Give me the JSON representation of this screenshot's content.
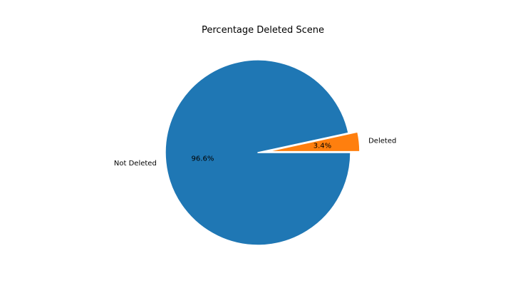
{
  "chart_data": {
    "type": "pie",
    "title": "Percentage Deleted Scene",
    "slices": [
      {
        "label": "Deleted",
        "value": 3.4,
        "pct_label": "3.4%",
        "color": "#ff7f0e",
        "exploded": true
      },
      {
        "label": "Not Deleted",
        "value": 96.6,
        "pct_label": "96.6%",
        "color": "#1f77b4",
        "exploded": false
      }
    ],
    "start_angle_deg": 0,
    "direction": "counterclockwise",
    "legend": "none"
  }
}
